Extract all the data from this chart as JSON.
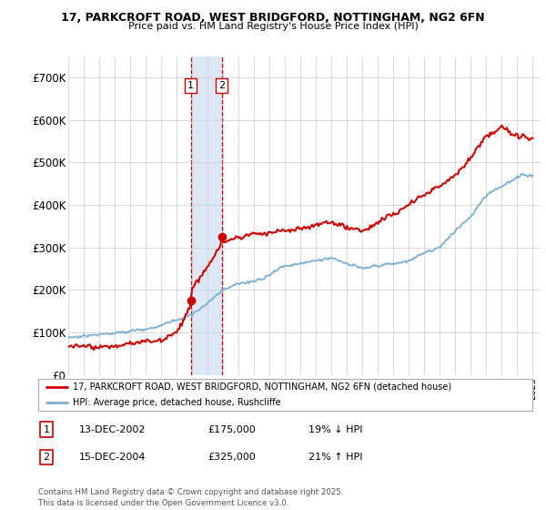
{
  "title_line1": "17, PARKCROFT ROAD, WEST BRIDGFORD, NOTTINGHAM, NG2 6FN",
  "title_line2": "Price paid vs. HM Land Registry's House Price Index (HPI)",
  "ylim": [
    0,
    750000
  ],
  "yticks": [
    0,
    100000,
    200000,
    300000,
    400000,
    500000,
    600000,
    700000
  ],
  "ytick_labels": [
    "£0",
    "£100K",
    "£200K",
    "£300K",
    "£400K",
    "£500K",
    "£600K",
    "£700K"
  ],
  "sale1_date": "13-DEC-2002",
  "sale1_price": 175000,
  "sale1_hpi_diff": "19% ↓ HPI",
  "sale2_date": "15-DEC-2004",
  "sale2_price": 325000,
  "sale2_hpi_diff": "21% ↑ HPI",
  "legend_line1": "17, PARKCROFT ROAD, WEST BRIDGFORD, NOTTINGHAM, NG2 6FN (detached house)",
  "legend_line2": "HPI: Average price, detached house, Rushcliffe",
  "footer": "Contains HM Land Registry data © Crown copyright and database right 2025.\nThis data is licensed under the Open Government Licence v3.0.",
  "price_color": "#cc0000",
  "hpi_color": "#7bafd4",
  "grid_color": "#cccccc",
  "highlight_fill": "#dce8f5",
  "highlight_edge": "#cc0000",
  "bg_color": "#ffffff"
}
